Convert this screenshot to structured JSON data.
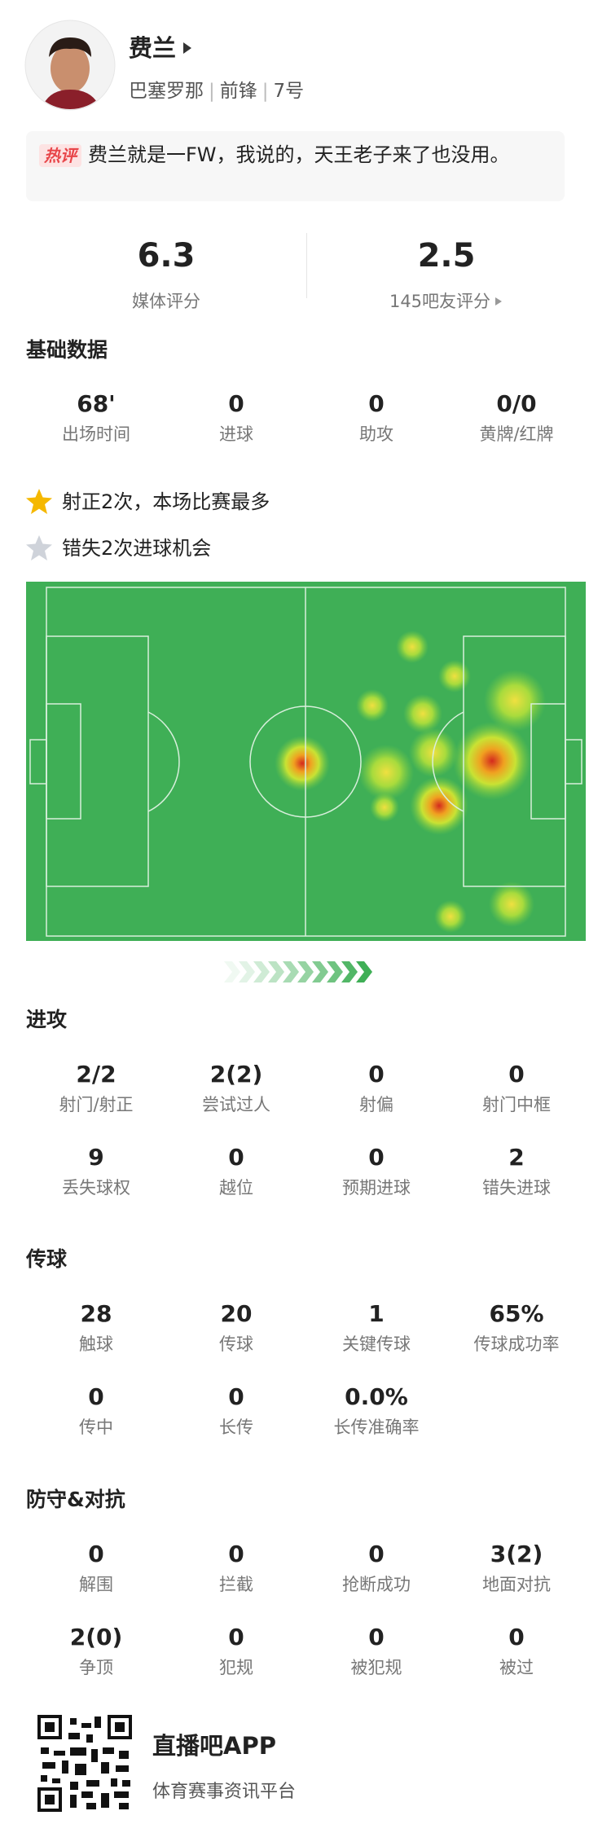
{
  "header": {
    "name": "费兰",
    "team": "巴塞罗那",
    "position": "前锋",
    "number": "7号"
  },
  "comment": {
    "tag": "热评",
    "text": "费兰就是一FW，我说的，天王老子来了也没用。"
  },
  "ratings": [
    {
      "value": "6.3",
      "label": "媒体评分"
    },
    {
      "value": "2.5",
      "label": "145吧友评分"
    }
  ],
  "basic": {
    "title": "基础数据",
    "stats": [
      {
        "value": "68'",
        "label": "出场时间"
      },
      {
        "value": "0",
        "label": "进球"
      },
      {
        "value": "0",
        "label": "助攻"
      },
      {
        "value": "0/0",
        "label": "黄牌/红牌"
      }
    ]
  },
  "highlights": [
    "射正2次，本场比赛最多",
    "错失2次进球机会"
  ],
  "sections": [
    {
      "title": "进攻",
      "stats": [
        {
          "value": "2/2",
          "label": "射门/射正"
        },
        {
          "value": "2(2)",
          "label": "尝试过人"
        },
        {
          "value": "0",
          "label": "射偏"
        },
        {
          "value": "0",
          "label": "射门中框"
        },
        {
          "value": "9",
          "label": "丢失球权"
        },
        {
          "value": "0",
          "label": "越位"
        },
        {
          "value": "0",
          "label": "预期进球"
        },
        {
          "value": "2",
          "label": "错失进球"
        }
      ]
    },
    {
      "title": "传球",
      "stats": [
        {
          "value": "28",
          "label": "触球"
        },
        {
          "value": "20",
          "label": "传球"
        },
        {
          "value": "1",
          "label": "关键传球"
        },
        {
          "value": "65%",
          "label": "传球成功率"
        },
        {
          "value": "0",
          "label": "传中"
        },
        {
          "value": "0",
          "label": "长传"
        },
        {
          "value": "0.0%",
          "label": "长传准确率"
        }
      ]
    },
    {
      "title": "防守&对抗",
      "stats": [
        {
          "value": "0",
          "label": "解围"
        },
        {
          "value": "0",
          "label": "拦截"
        },
        {
          "value": "0",
          "label": "抢断成功"
        },
        {
          "value": "3(2)",
          "label": "地面对抗"
        },
        {
          "value": "2(0)",
          "label": "争顶"
        },
        {
          "value": "0",
          "label": "犯规"
        },
        {
          "value": "0",
          "label": "被犯规"
        },
        {
          "value": "0",
          "label": "被过"
        }
      ]
    }
  ],
  "footer": {
    "app": "直播吧APP",
    "slogan": "体育赛事资讯平台"
  }
}
